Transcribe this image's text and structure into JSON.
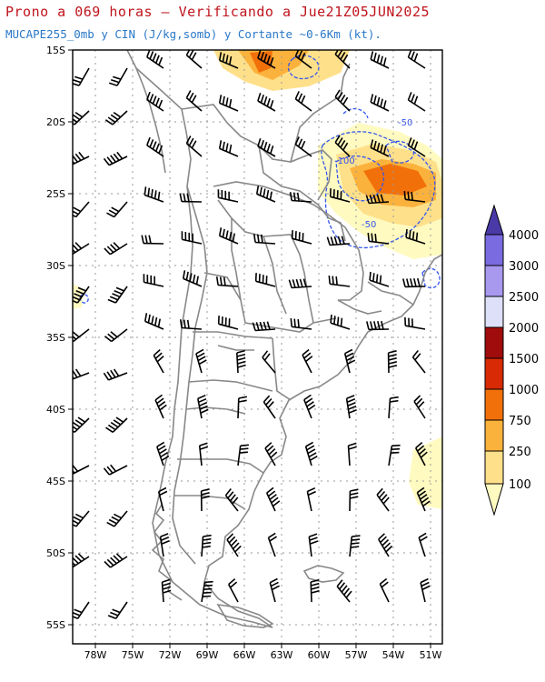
{
  "header": {
    "title": "Prono a 069 horas – Verificando a Jue21Z05JUN2025",
    "subtitle": "MUCAPE255_0mb y CIN (J/kg,somb) y Cortante ~0-6Km (kt)."
  },
  "map": {
    "lat_labels": [
      "15S",
      "20S",
      "25S",
      "30S",
      "35S",
      "40S",
      "45S",
      "50S",
      "55S"
    ],
    "lon_labels": [
      "78W",
      "75W",
      "72W",
      "69W",
      "66W",
      "63W",
      "60W",
      "57W",
      "54W",
      "51W"
    ],
    "cin_contour_labels": [
      "-50",
      "-100",
      "-50"
    ],
    "colors": {
      "coast": "#888888",
      "cin_contour": "#3355ee",
      "wind_barb": "#000000",
      "frame": "#000000"
    }
  },
  "colorbar": {
    "levels": [
      "100",
      "250",
      "750",
      "1000",
      "1500",
      "2000",
      "2500",
      "3000",
      "4000"
    ],
    "colors": [
      "#fffac0",
      "#ffe08a",
      "#fbb23c",
      "#f2700a",
      "#d82a05",
      "#a00c0c",
      "#dde0f8",
      "#a898ee",
      "#7a6be0",
      "#4a3aa8"
    ]
  }
}
